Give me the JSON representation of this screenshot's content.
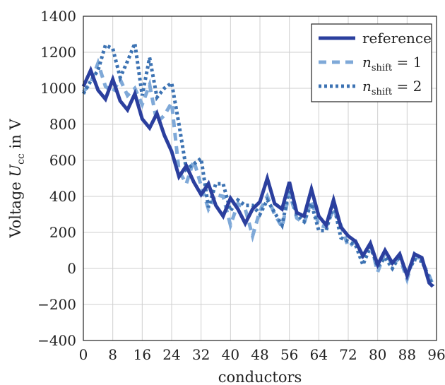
{
  "chart_data": {
    "type": "line",
    "title": "",
    "xlabel": "conductors",
    "ylabel": "Voltage Ucc in V",
    "ylabel_parts": {
      "prefix": "Voltage ",
      "symbol": "U",
      "subscript": "cc",
      "suffix": " in V"
    },
    "xlim": [
      0,
      96
    ],
    "ylim": [
      -400,
      1400
    ],
    "xticks": [
      0,
      8,
      16,
      24,
      32,
      40,
      48,
      56,
      64,
      72,
      80,
      88,
      96
    ],
    "yticks": [
      -400,
      -200,
      0,
      200,
      400,
      600,
      800,
      1000,
      1200,
      1400
    ],
    "xtick_labels": [
      "0",
      "8",
      "16",
      "24",
      "32",
      "40",
      "48",
      "56",
      "64",
      "72",
      "80",
      "88",
      "96"
    ],
    "ytick_labels": [
      "−400",
      "−200",
      "0",
      "200",
      "400",
      "600",
      "800",
      "1000",
      "1200",
      "1400"
    ],
    "grid": true,
    "legend_position": "top-right",
    "series": [
      {
        "name": "reference",
        "legend_label": {
          "text": "reference"
        },
        "color": "#2b3f9e",
        "style": "solid",
        "x": [
          0,
          2,
          4,
          6,
          8,
          10,
          12,
          14,
          16,
          18,
          20,
          22,
          24,
          26,
          28,
          30,
          32,
          34,
          36,
          38,
          40,
          42,
          44,
          46,
          48,
          50,
          52,
          54,
          56,
          58,
          60,
          62,
          64,
          66,
          68,
          70,
          72,
          74,
          76,
          78,
          80,
          82,
          84,
          86,
          88,
          90,
          92,
          94,
          95
        ],
        "y": [
          1010,
          1100,
          990,
          940,
          1050,
          930,
          880,
          970,
          830,
          780,
          860,
          740,
          650,
          510,
          570,
          480,
          410,
          470,
          350,
          290,
          390,
          330,
          250,
          330,
          370,
          500,
          360,
          330,
          480,
          310,
          290,
          440,
          290,
          240,
          380,
          230,
          180,
          150,
          70,
          140,
          20,
          100,
          30,
          80,
          -40,
          80,
          60,
          -80,
          -100
        ]
      },
      {
        "name": "n_shift = 1",
        "legend_label": {
          "symbol": "n",
          "subscript": "shift",
          "suffix": " = 1"
        },
        "color": "#7fa9d8",
        "style": "dashed",
        "x": [
          0,
          2,
          4,
          6,
          8,
          10,
          12,
          14,
          16,
          18,
          20,
          22,
          24,
          26,
          28,
          30,
          32,
          34,
          36,
          38,
          40,
          42,
          44,
          46,
          48,
          50,
          52,
          54,
          56,
          58,
          60,
          62,
          64,
          66,
          68,
          70,
          72,
          74,
          76,
          78,
          80,
          82,
          84,
          86,
          88,
          90,
          92,
          94,
          95
        ],
        "y": [
          980,
          1030,
          1140,
          1010,
          980,
          1050,
          960,
          1000,
          910,
          1020,
          810,
          850,
          920,
          540,
          470,
          600,
          460,
          330,
          410,
          400,
          240,
          360,
          330,
          180,
          320,
          400,
          300,
          230,
          420,
          280,
          250,
          380,
          240,
          230,
          330,
          240,
          120,
          150,
          70,
          140,
          -20,
          90,
          20,
          60,
          -60,
          80,
          40,
          -40,
          -90
        ]
      },
      {
        "name": "n_shift = 2",
        "legend_label": {
          "symbol": "n",
          "subscript": "shift",
          "suffix": " = 2"
        },
        "color": "#3d73b3",
        "style": "dotted",
        "x": [
          0,
          2,
          4,
          6,
          8,
          10,
          12,
          14,
          16,
          18,
          20,
          22,
          24,
          26,
          28,
          30,
          32,
          34,
          36,
          38,
          40,
          42,
          44,
          46,
          48,
          50,
          52,
          54,
          56,
          58,
          60,
          62,
          64,
          66,
          68,
          70,
          72,
          74,
          76,
          78,
          80,
          82,
          84,
          86,
          88,
          90,
          92,
          94,
          95
        ],
        "y": [
          970,
          1040,
          1100,
          1240,
          1220,
          1060,
          1150,
          1250,
          960,
          1170,
          950,
          1000,
          1030,
          800,
          550,
          580,
          610,
          340,
          470,
          470,
          320,
          380,
          350,
          350,
          300,
          380,
          310,
          240,
          440,
          300,
          260,
          360,
          210,
          210,
          360,
          170,
          150,
          130,
          20,
          120,
          10,
          60,
          0,
          70,
          -30,
          50,
          40,
          -50,
          -100
        ]
      }
    ]
  }
}
